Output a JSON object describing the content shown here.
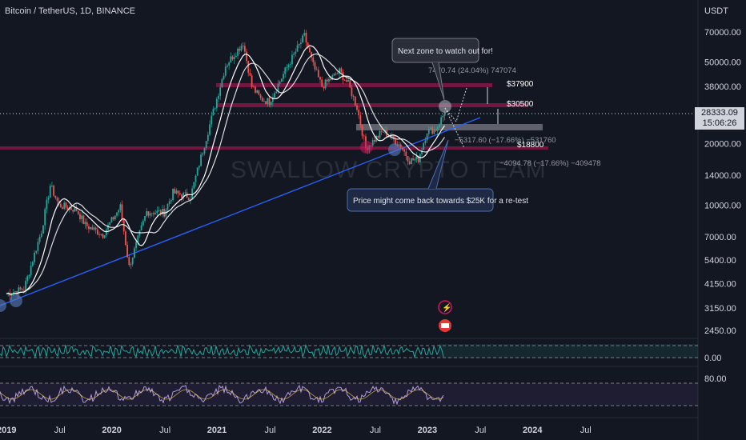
{
  "header": {
    "symbol": "Bitcoin / TetherUS, 1D, BINANCE",
    "unit": "USDT"
  },
  "price_tag": {
    "price": "28333.09",
    "countdown": "15:06:26"
  },
  "watermark": "SWALLOW CRYPTO TEAM",
  "annotations": {
    "bubble_top": "Next zone to watch out for!",
    "bubble_bottom": "Price might come back towards $25K for a re-test",
    "measure_up": "7470.74 (24.04%) 747074",
    "measure_down_1": "−5317.60 (−17.66%) −531760",
    "measure_down_2": "−4094.78 (−17.66%) −409478"
  },
  "levels": [
    {
      "label": "$37900",
      "value": 37900
    },
    {
      "label": "$30500",
      "value": 30500
    },
    {
      "label": "$18800",
      "value": 18800
    }
  ],
  "colors": {
    "background": "#131722",
    "bull": "#26a69a",
    "bear": "#ef5350",
    "resistance": "#c2185b",
    "trendline": "#2962ff",
    "rsi": "#b39ddb",
    "osc": "#26a69a"
  },
  "chart_data": {
    "type": "candlestick",
    "title": "Bitcoin / TetherUS, 1D, BINANCE",
    "y_scale": "log",
    "ylim": [
      2000,
      90000
    ],
    "y_ticks": [
      "70000.00",
      "50000.00",
      "38000.00",
      "28000.00",
      "20000.00",
      "14000.00",
      "10000.00",
      "7000.00",
      "5400.00",
      "4150.00",
      "3150.00",
      "2450.00"
    ],
    "x_ticks": [
      "2019",
      "Jul",
      "2020",
      "Jul",
      "2021",
      "Jul",
      "2022",
      "Jul",
      "2023",
      "Jul",
      "2024",
      "Jul"
    ],
    "x_tick_bold": [
      true,
      false,
      true,
      false,
      true,
      false,
      true,
      false,
      true,
      false,
      true,
      false
    ],
    "price_path": [
      [
        "2019-01",
        3700
      ],
      [
        "2019-03",
        3900
      ],
      [
        "2019-05",
        7500
      ],
      [
        "2019-06",
        12500
      ],
      [
        "2019-07",
        10000
      ],
      [
        "2019-09",
        9500
      ],
      [
        "2019-10",
        8000
      ],
      [
        "2019-12",
        7200
      ],
      [
        "2020-02",
        9800
      ],
      [
        "2020-03",
        5000
      ],
      [
        "2020-05",
        9300
      ],
      [
        "2020-07",
        9200
      ],
      [
        "2020-08",
        11500
      ],
      [
        "2020-10",
        11000
      ],
      [
        "2020-12",
        23000
      ],
      [
        "2021-01",
        33000
      ],
      [
        "2021-02",
        48000
      ],
      [
        "2021-04",
        62000
      ],
      [
        "2021-05",
        38000
      ],
      [
        "2021-06",
        33000
      ],
      [
        "2021-07",
        32000
      ],
      [
        "2021-09",
        47000
      ],
      [
        "2021-11",
        67000
      ],
      [
        "2021-12",
        48000
      ],
      [
        "2022-01",
        38000
      ],
      [
        "2022-03",
        45000
      ],
      [
        "2022-04",
        39000
      ],
      [
        "2022-05",
        30000
      ],
      [
        "2022-06",
        19000
      ],
      [
        "2022-08",
        23000
      ],
      [
        "2022-10",
        19500
      ],
      [
        "2022-11",
        16500
      ],
      [
        "2022-12",
        16800
      ],
      [
        "2023-01",
        23000
      ],
      [
        "2023-02",
        23500
      ],
      [
        "2023-03",
        28333
      ]
    ],
    "oscillator_panel": {
      "level": "0.00"
    },
    "rsi_panel": {
      "level": "80.00"
    }
  }
}
